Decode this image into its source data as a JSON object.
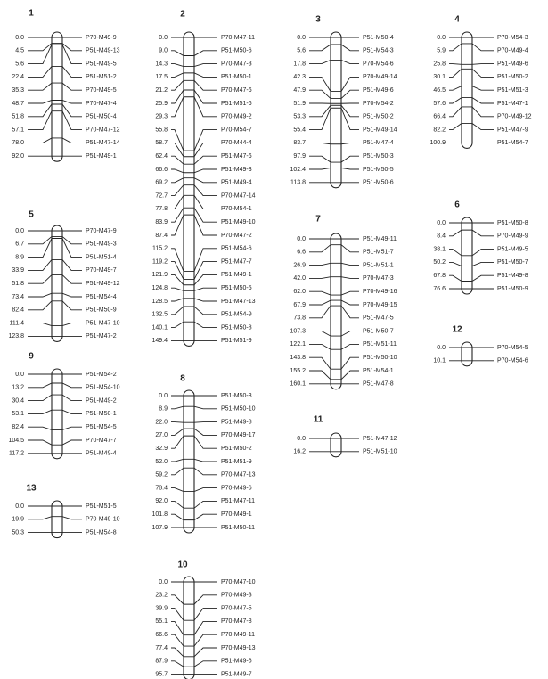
{
  "groups": [
    {
      "name": "1",
      "markers": [
        [
          "0.0",
          "P70-M49-9"
        ],
        [
          "4.5",
          "P51-M49-13"
        ],
        [
          "5.6",
          "P51-M49-5"
        ],
        [
          "22.4",
          "P51-M51-2"
        ],
        [
          "35.3",
          "P70-M49-5"
        ],
        [
          "48.7",
          "P70-M47-4"
        ],
        [
          "51.8",
          "P51-M50-4"
        ],
        [
          "57.1",
          "P70-M47-12"
        ],
        [
          "78.0",
          "P51-M47-14"
        ],
        [
          "92.0",
          "P51-M49-1"
        ]
      ]
    },
    {
      "name": "2",
      "markers": [
        [
          "0.0",
          "P70-M47-11"
        ],
        [
          "9.0",
          "P51-M50-6"
        ],
        [
          "14.3",
          "P70-M47-3"
        ],
        [
          "17.5",
          "P51-M50-1"
        ],
        [
          "21.2",
          "P70-M47-6"
        ],
        [
          "25.9",
          "P51-M51-6"
        ],
        [
          "29.3",
          "P70-M49-2"
        ],
        [
          "55.8",
          "P70-M54-7"
        ],
        [
          "58.7",
          "P70-M44-4"
        ],
        [
          "62.4",
          "P51-M47-6"
        ],
        [
          "66.6",
          "P51-M49-3"
        ],
        [
          "69.2",
          "P51-M49-4"
        ],
        [
          "72.7",
          "P70-M47-14"
        ],
        [
          "77.8",
          "P70-M54-1"
        ],
        [
          "83.9",
          "P51-M49-10"
        ],
        [
          "87.4",
          "P70-M47-2"
        ],
        [
          "115.2",
          "P51-M54-6"
        ],
        [
          "119.2",
          "P51-M47-7"
        ],
        [
          "121.9",
          "P51-M49-1"
        ],
        [
          "124.8",
          "P51-M50-5"
        ],
        [
          "128.5",
          "P51-M47-13"
        ],
        [
          "132.5",
          "P51-M54-9"
        ],
        [
          "140.1",
          "P51-M50-8"
        ],
        [
          "149.4",
          "P51-M51-9"
        ]
      ]
    },
    {
      "name": "3",
      "markers": [
        [
          "0.0",
          "P51-M50-4"
        ],
        [
          "5.6",
          "P51-M54-3"
        ],
        [
          "17.8",
          "P70-M54-6"
        ],
        [
          "42.3",
          "P70-M49-14"
        ],
        [
          "47.9",
          "P51-M49-6"
        ],
        [
          "51.9",
          "P70-M54-2"
        ],
        [
          "53.3",
          "P51-M50-2"
        ],
        [
          "55.4",
          "P51-M49-14"
        ],
        [
          "83.7",
          "P51-M47-4"
        ],
        [
          "97.9",
          "P51-M50-3"
        ],
        [
          "102.4",
          "P51-M50-5"
        ],
        [
          "113.8",
          "P51-M50-6"
        ]
      ]
    },
    {
      "name": "4",
      "markers": [
        [
          "0.0",
          "P70-M54-3"
        ],
        [
          "5.9",
          "P70-M49-4"
        ],
        [
          "25.8",
          "P51-M49-6"
        ],
        [
          "30.1",
          "P51-M50-2"
        ],
        [
          "46.5",
          "P51-M51-3"
        ],
        [
          "57.6",
          "P51-M47-1"
        ],
        [
          "66.4",
          "P70-M49-12"
        ],
        [
          "82.2",
          "P51-M47-9"
        ],
        [
          "100.9",
          "P51-M54-7"
        ]
      ]
    },
    {
      "name": "5",
      "markers": [
        [
          "0.0",
          "P70-M47-9"
        ],
        [
          "6.7",
          "P51-M49-3"
        ],
        [
          "8.9",
          "P51-M51-4"
        ],
        [
          "33.9",
          "P70-M49-7"
        ],
        [
          "51.8",
          "P51-M49-12"
        ],
        [
          "73.4",
          "P51-M54-4"
        ],
        [
          "82.4",
          "P51-M50-9"
        ],
        [
          "111.4",
          "P51-M47-10"
        ],
        [
          "123.8",
          "P51-M47-2"
        ]
      ]
    },
    {
      "name": "6",
      "markers": [
        [
          "0.0",
          "P51-M50-8"
        ],
        [
          "8.4",
          "P70-M49-9"
        ],
        [
          "38.1",
          "P51-M49-5"
        ],
        [
          "50.2",
          "P51-M50-7"
        ],
        [
          "67.8",
          "P51-M49-8"
        ],
        [
          "76.6",
          "P51-M50-9"
        ]
      ]
    },
    {
      "name": "7",
      "markers": [
        [
          "0.0",
          "P51-M49-11"
        ],
        [
          "6.6",
          "P51-M51-7"
        ],
        [
          "26.9",
          "P51-M51-1"
        ],
        [
          "42.0",
          "P70-M47-3"
        ],
        [
          "62.0",
          "P70-M49-16"
        ],
        [
          "67.9",
          "P70-M49-15"
        ],
        [
          "73.8",
          "P51-M47-5"
        ],
        [
          "107.3",
          "P51-M50-7"
        ],
        [
          "122.1",
          "P51-M51-11"
        ],
        [
          "143.8",
          "P51-M50-10"
        ],
        [
          "155.2",
          "P51-M54-1"
        ],
        [
          "160.1",
          "P51-M47-8"
        ]
      ]
    },
    {
      "name": "8",
      "markers": [
        [
          "0.0",
          "P51-M50-3"
        ],
        [
          "8.9",
          "P51-M50-10"
        ],
        [
          "22.0",
          "P51-M49-8"
        ],
        [
          "27.0",
          "P70-M49-17"
        ],
        [
          "32.9",
          "P51-M50-2"
        ],
        [
          "52.0",
          "P51-M51-9"
        ],
        [
          "59.2",
          "P70-M47-13"
        ],
        [
          "78.4",
          "P70-M49-6"
        ],
        [
          "92.0",
          "P51-M47-11"
        ],
        [
          "101.8",
          "P70-M49-1"
        ],
        [
          "107.9",
          "P51-M50-11"
        ]
      ]
    },
    {
      "name": "9",
      "markers": [
        [
          "0.0",
          "P51-M54-2"
        ],
        [
          "13.2",
          "P51-M54-10"
        ],
        [
          "30.4",
          "P51-M49-2"
        ],
        [
          "53.1",
          "P51-M50-1"
        ],
        [
          "82.4",
          "P51-M54-5"
        ],
        [
          "104.5",
          "P70-M47-7"
        ],
        [
          "117.2",
          "P51-M49-4"
        ]
      ]
    },
    {
      "name": "10",
      "markers": [
        [
          "0.0",
          "P70-M47-10"
        ],
        [
          "23.2",
          "P70-M49-3"
        ],
        [
          "39.9",
          "P70-M47-5"
        ],
        [
          "55.1",
          "P70-M47-8"
        ],
        [
          "66.6",
          "P70-M49-11"
        ],
        [
          "77.4",
          "P70-M49-13"
        ],
        [
          "87.9",
          "P51-M49-6"
        ],
        [
          "95.7",
          "P51-M49-7"
        ]
      ]
    },
    {
      "name": "11",
      "markers": [
        [
          "0.0",
          "P51-M47-12"
        ],
        [
          "16.2",
          "P51-M51-10"
        ]
      ]
    },
    {
      "name": "12",
      "markers": [
        [
          "0.0",
          "P70-M54-5"
        ],
        [
          "10.1",
          "P70-M54-6"
        ]
      ]
    },
    {
      "name": "13",
      "markers": [
        [
          "0.0",
          "P51-M51-5"
        ],
        [
          "19.9",
          "P70-M49-10"
        ],
        [
          "50.3",
          "P51-M54-8"
        ]
      ]
    }
  ]
}
